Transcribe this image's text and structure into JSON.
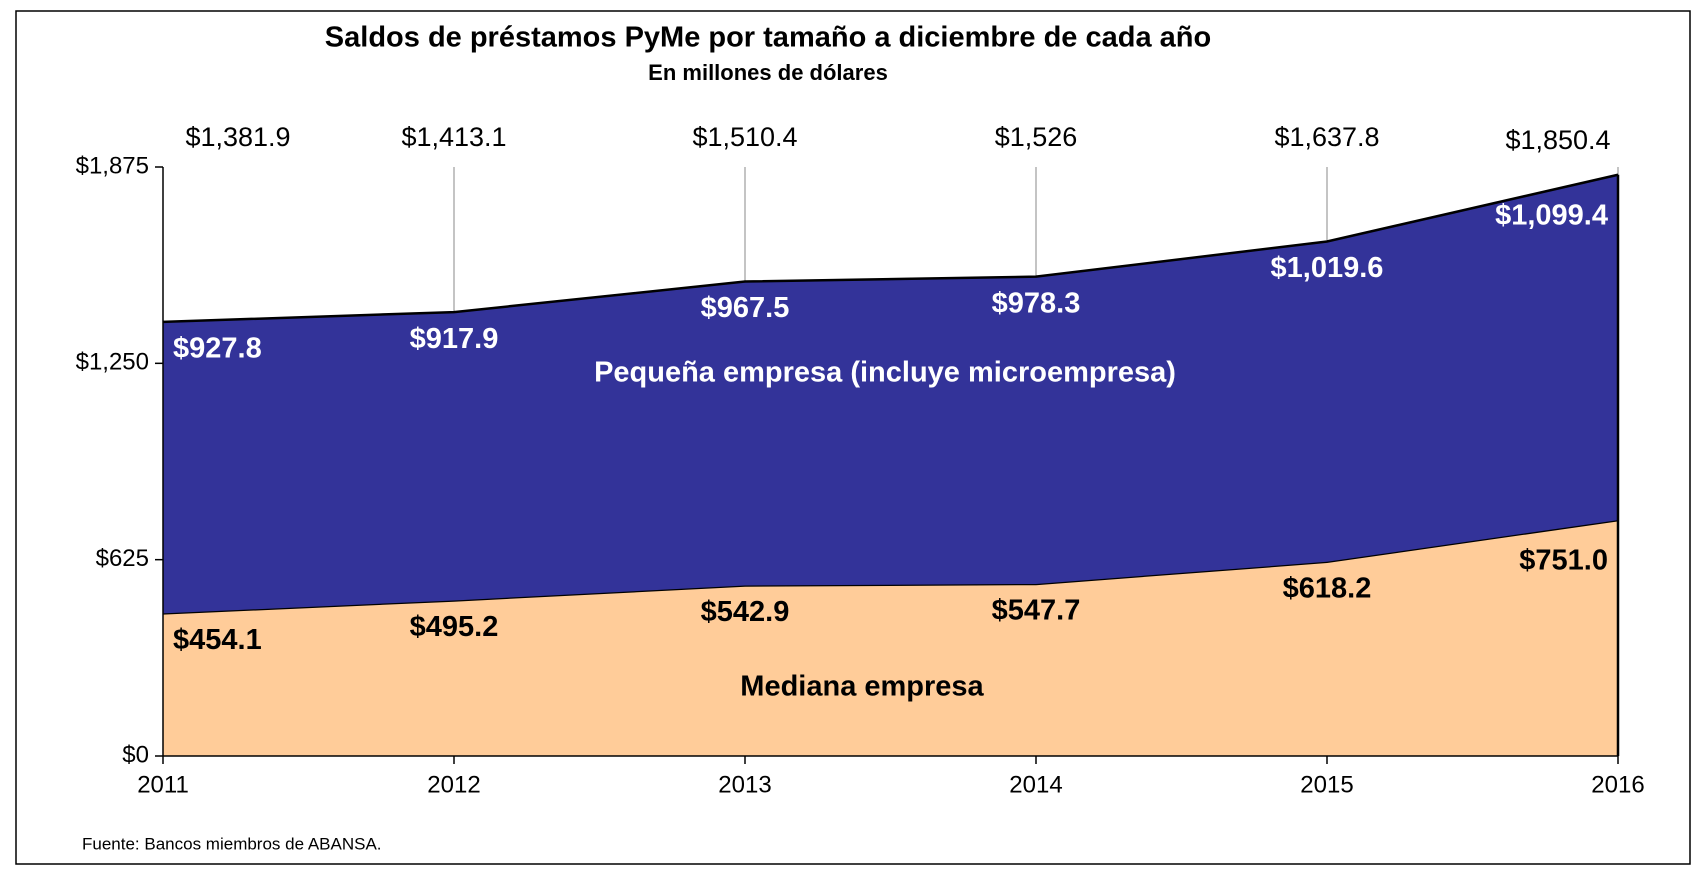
{
  "chart_data": {
    "type": "stacked_area",
    "title": "Saldos de préstamos PyMe por tamaño a diciembre de cada año",
    "subtitle": "En millones de dólares",
    "categories": [
      "2011",
      "2012",
      "2013",
      "2014",
      "2015",
      "2016"
    ],
    "series": [
      {
        "name": "Mediana empresa",
        "color": "#ffcc99",
        "label_color": "#000000",
        "values": [
          454.1,
          495.2,
          542.9,
          547.7,
          618.2,
          751.0
        ],
        "value_labels": [
          "$454.1",
          "$495.2",
          "$542.9",
          "$547.7",
          "$618.2",
          "$751.0"
        ]
      },
      {
        "name": "Pequeña empresa (incluye microempresa)",
        "color": "#333399",
        "label_color": "#ffffff",
        "values": [
          927.8,
          917.9,
          967.5,
          978.3,
          1019.6,
          1099.4
        ],
        "value_labels": [
          "$927.8",
          "$917.9",
          "$967.5",
          "$978.3",
          "$1,019.6",
          "$1,099.4"
        ]
      }
    ],
    "totals": {
      "values": [
        1381.9,
        1413.1,
        1510.4,
        1526,
        1637.8,
        1850.4
      ],
      "value_labels": [
        "$1,381.9",
        "$1,413.1",
        "$1,510.4",
        "$1,526",
        "$1,637.8",
        "$1,850.4"
      ]
    },
    "ylim": [
      0,
      1875
    ],
    "yticks": [
      {
        "value": 0,
        "label": "$0"
      },
      {
        "value": 625,
        "label": "$625"
      },
      {
        "value": 1250,
        "label": "$1,250"
      },
      {
        "value": 1875,
        "label": "$1,875"
      }
    ],
    "grid": true,
    "source": "Fuente: Bancos miembros de ABANSA."
  }
}
